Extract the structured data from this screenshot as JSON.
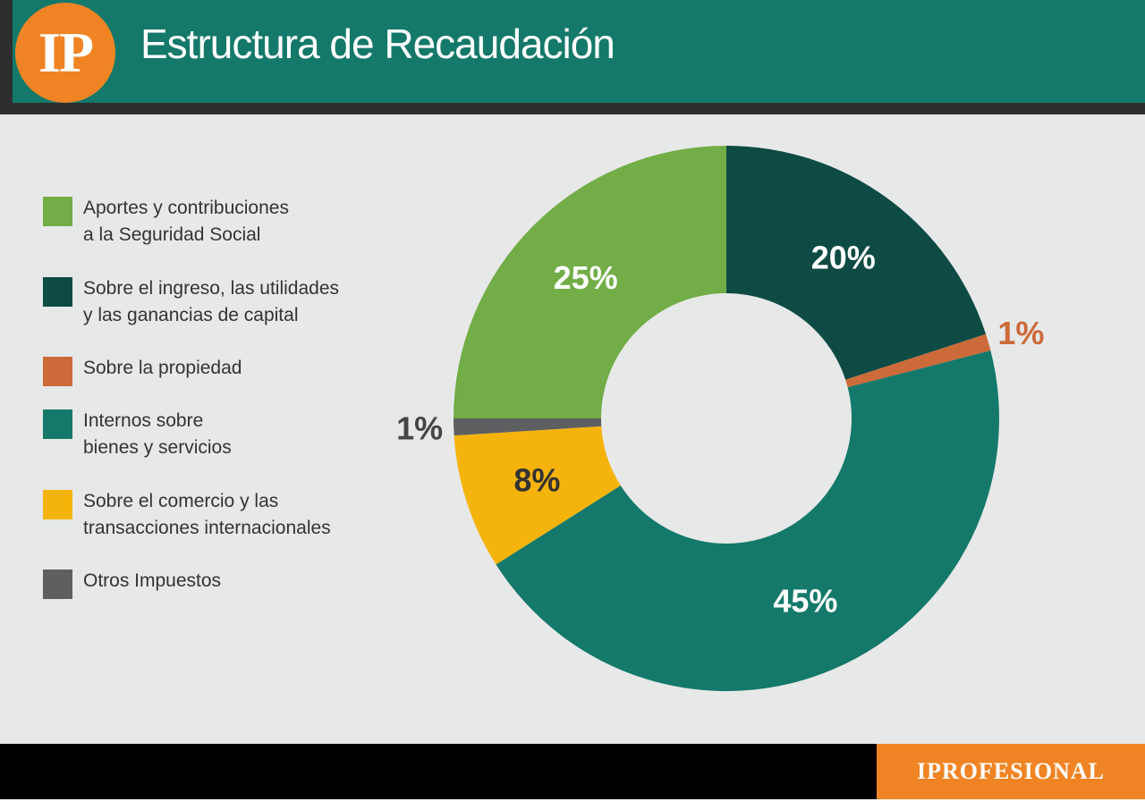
{
  "header": {
    "logo_text": "IP",
    "title": "Estructura de Recaudación"
  },
  "footer": {
    "brand": "IPROFESIONAL"
  },
  "colors": {
    "header_bg": "#14796a",
    "logo_bg": "#f08424",
    "panel_bg": "#e7e8e8"
  },
  "legend": {
    "items": [
      {
        "lines": [
          "Aportes y contribuciones",
          "a la Seguridad Social"
        ],
        "color": "#72ad47"
      },
      {
        "lines": [
          "Sobre el ingreso, las utilidades",
          "y las ganancias de capital"
        ],
        "color": "#0d4b44"
      },
      {
        "lines": [
          "Sobre la propiedad",
          ""
        ],
        "color": "#cc6a3a"
      },
      {
        "lines": [
          "Internos sobre",
          "bienes y servicios"
        ],
        "color": "#14796a"
      },
      {
        "lines": [
          "Sobre el comercio y las",
          "transacciones internacionales"
        ],
        "color": "#f5b40c"
      },
      {
        "lines": [
          "Otros Impuestos",
          ""
        ],
        "color": "#5e5f61"
      }
    ]
  },
  "chart_data": {
    "type": "pie",
    "donut": true,
    "title": "Estructura de Recaudación",
    "legend_position": "left",
    "slices": [
      {
        "label": "Sobre el ingreso, las utilidades y las ganancias de capital",
        "value": 20,
        "display": "20%",
        "color": "#0d4b44",
        "label_color": "#ffffff",
        "label_outside": false
      },
      {
        "label": "Sobre la propiedad",
        "value": 1,
        "display": "1%",
        "color": "#cc6a3a",
        "label_color": "#cc6a3a",
        "label_outside": true
      },
      {
        "label": "Internos sobre bienes y servicios",
        "value": 45,
        "display": "45%",
        "color": "#14796a",
        "label_color": "#ffffff",
        "label_outside": false
      },
      {
        "label": "Sobre el comercio y las transacciones internacionales",
        "value": 8,
        "display": "8%",
        "color": "#f5b40c",
        "label_color": "#333333",
        "label_outside": false
      },
      {
        "label": "Otros Impuestos",
        "value": 1,
        "display": "1%",
        "color": "#5e5f61",
        "label_color": "#454545",
        "label_outside": true
      },
      {
        "label": "Aportes y contribuciones a la Seguridad Social",
        "value": 25,
        "display": "25%",
        "color": "#72ad47",
        "label_color": "#ffffff",
        "label_outside": false
      }
    ]
  }
}
